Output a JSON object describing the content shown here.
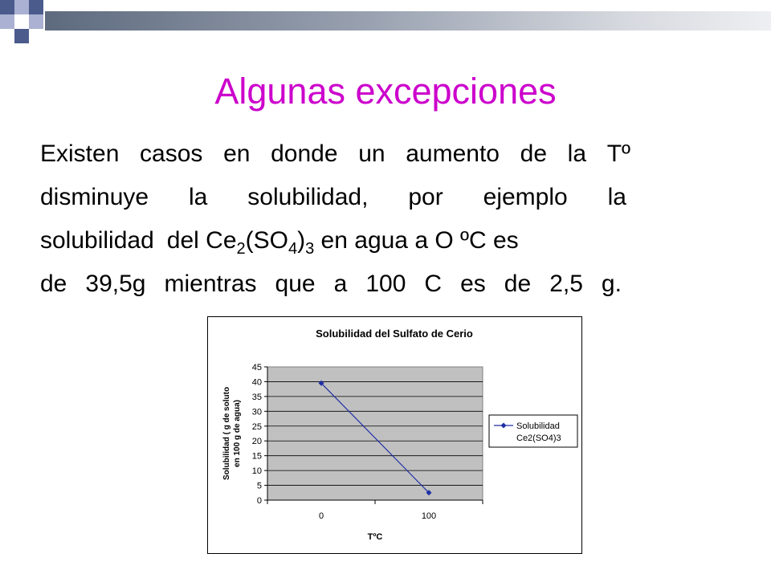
{
  "slide": {
    "title": "Algunas excepciones",
    "body_lines": [
      [
        "Existen",
        "casos",
        "en",
        "donde",
        "un",
        "aumento",
        "de",
        "la",
        "Tº"
      ],
      [
        "disminuye",
        "la",
        "solubilidad,",
        "por",
        "ejemplo",
        "la"
      ],
      [
        "solubilidad",
        "del Ce",
        {
          "sub": "2"
        },
        "(SO",
        {
          "sub": "4"
        },
        ")",
        {
          "sub": "3"
        },
        " en agua a O ºC es"
      ],
      [
        "de",
        "39,5g",
        "mientras",
        "que",
        "a",
        "100",
        "C",
        "es",
        "de",
        "2,5",
        "g."
      ]
    ]
  },
  "chart_data": {
    "type": "line",
    "title": "Solubilidad del Sulfato de Cerio",
    "xlabel": "TºC",
    "ylabel": "Solubilidad ( g de soluto en 100 g de agua)",
    "categories": [
      "0",
      "100"
    ],
    "series": [
      {
        "name": "Solubilidad Ce2(SO4)3",
        "values": [
          39.5,
          2.5
        ],
        "color": "#1f2fa6"
      }
    ],
    "ylim": [
      0,
      45
    ],
    "yticks": [
      0,
      5,
      10,
      15,
      20,
      25,
      30,
      35,
      40,
      45
    ],
    "grid": true,
    "plot_background": "#c0c0c0",
    "legend": "right"
  },
  "colors": {
    "title": "#cc00cc",
    "deco_dark": "#4a5a8a",
    "deco_light": "#a9b0d0"
  }
}
